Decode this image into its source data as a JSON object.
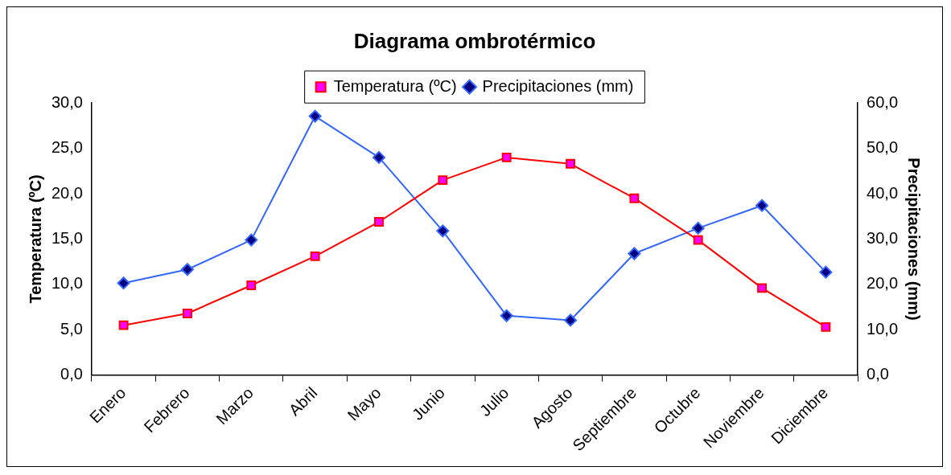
{
  "chart_data": {
    "type": "line",
    "title": "Diagrama ombrotérmico",
    "categories": [
      "Enero",
      "Febrero",
      "Marzo",
      "Abril",
      "Mayo",
      "Junio",
      "Julio",
      "Agosto",
      "Septiembre",
      "Octubre",
      "Noviembre",
      "Diciembre"
    ],
    "series": [
      {
        "name": "Temperatura (ºC)",
        "color": "#ff0000",
        "marker": "square",
        "values": [
          5.5,
          6.8,
          9.9,
          13.1,
          16.9,
          21.5,
          24.0,
          23.3,
          19.5,
          14.9,
          9.6,
          5.3
        ]
      },
      {
        "name": "Precipitaciones (mm)",
        "color": "#3366ff",
        "marker": "diamond",
        "axis": "y2",
        "values": [
          20.3,
          23.3,
          29.8,
          57.1,
          48.0,
          31.8,
          13.1,
          12.1,
          26.8,
          32.4,
          37.4,
          22.7
        ]
      }
    ],
    "ylabel": "Temperatura (ºC)",
    "y2label": "Precipitaciones (mm)",
    "ylim": [
      0,
      30
    ],
    "yticks": [
      {
        "value": 0,
        "label": "0,0"
      },
      {
        "value": 5,
        "label": "5,0"
      },
      {
        "value": 10,
        "label": "10,0"
      },
      {
        "value": 15,
        "label": "15,0"
      },
      {
        "value": 20,
        "label": "20,0"
      },
      {
        "value": 25,
        "label": "25,0"
      },
      {
        "value": 30,
        "label": "30,0"
      }
    ],
    "y2lim": [
      0,
      60
    ],
    "y2ticks": [
      {
        "value": 0,
        "label": "0,0"
      },
      {
        "value": 10,
        "label": "10,0"
      },
      {
        "value": 20,
        "label": "20,0"
      },
      {
        "value": 30,
        "label": "30,0"
      },
      {
        "value": 40,
        "label": "40,0"
      },
      {
        "value": 50,
        "label": "50,0"
      },
      {
        "value": 60,
        "label": "60,0"
      }
    ],
    "grid": false,
    "legend": "top",
    "line_style": "solid"
  }
}
